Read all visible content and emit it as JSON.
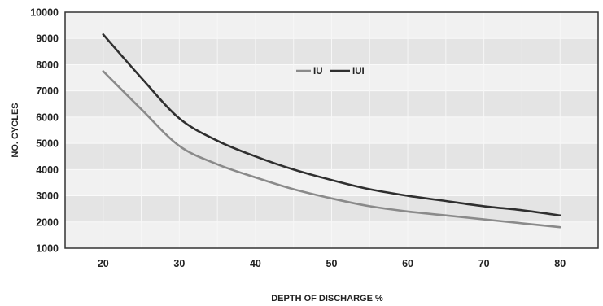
{
  "chart_data": {
    "type": "line",
    "xlabel": "DEPTH OF DISCHARGE %",
    "ylabel": "NO. CYCLES",
    "xlim": [
      15,
      85
    ],
    "ylim": [
      1000,
      10000
    ],
    "x_ticks": [
      20,
      30,
      40,
      50,
      60,
      70,
      80
    ],
    "y_ticks": [
      1000,
      2000,
      3000,
      4000,
      5000,
      6000,
      7000,
      8000,
      9000,
      10000
    ],
    "grid": "horizontal bands",
    "legend_position": "upper-center",
    "series": [
      {
        "name": "IU",
        "color": "#8a8a8a",
        "x": [
          20,
          25,
          30,
          35,
          40,
          45,
          50,
          55,
          60,
          65,
          70,
          75,
          80
        ],
        "y": [
          7750,
          6300,
          4900,
          4200,
          3700,
          3250,
          2900,
          2600,
          2400,
          2250,
          2100,
          1950,
          1800
        ]
      },
      {
        "name": "IUI",
        "color": "#2f2f2f",
        "x": [
          20,
          25,
          30,
          35,
          40,
          45,
          50,
          55,
          60,
          65,
          70,
          75,
          80
        ],
        "y": [
          9150,
          7500,
          5950,
          5100,
          4500,
          4000,
          3600,
          3250,
          3000,
          2800,
          2600,
          2450,
          2250
        ]
      }
    ]
  }
}
